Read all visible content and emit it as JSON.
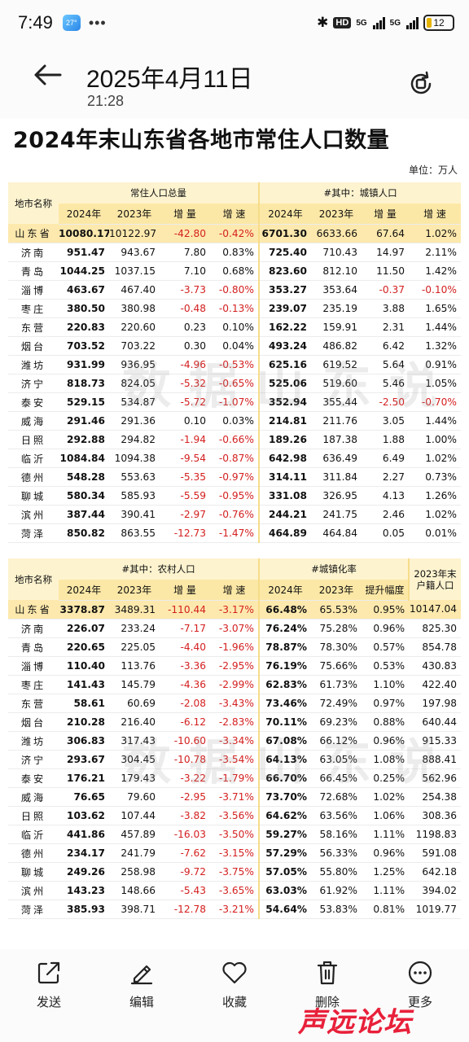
{
  "status_bar": {
    "time": "7:49",
    "app_badge": "27°",
    "more": "•••",
    "hd": "HD",
    "net1": "5G",
    "net2": "5G",
    "battery": "12"
  },
  "header": {
    "date": "2025年4月11日",
    "time": "21:28"
  },
  "document": {
    "title": "2024年末山东省各地市常住人口数量",
    "unit": "单位：万人",
    "watermark": "数据山东说",
    "table1": {
      "name_header": "地市名称",
      "group1": "常住人口总量",
      "group2": "#其中：城镇人口",
      "cols": [
        "2024年",
        "2023年",
        "增 量",
        "增 速",
        "2024年",
        "2023年",
        "增 量",
        "增 速"
      ],
      "rows": [
        [
          "山东省",
          "10080.17",
          "10122.97",
          "-42.80",
          "-0.42%",
          "6701.30",
          "6633.66",
          "67.64",
          "1.02%"
        ],
        [
          "济南",
          "951.47",
          "943.67",
          "7.80",
          "0.83%",
          "725.40",
          "710.43",
          "14.97",
          "2.11%"
        ],
        [
          "青岛",
          "1044.25",
          "1037.15",
          "7.10",
          "0.68%",
          "823.60",
          "812.10",
          "11.50",
          "1.42%"
        ],
        [
          "淄博",
          "463.67",
          "467.40",
          "-3.73",
          "-0.80%",
          "353.27",
          "353.64",
          "-0.37",
          "-0.10%"
        ],
        [
          "枣庄",
          "380.50",
          "380.98",
          "-0.48",
          "-0.13%",
          "239.07",
          "235.19",
          "3.88",
          "1.65%"
        ],
        [
          "东营",
          "220.83",
          "220.60",
          "0.23",
          "0.10%",
          "162.22",
          "159.91",
          "2.31",
          "1.44%"
        ],
        [
          "烟台",
          "703.52",
          "703.22",
          "0.30",
          "0.04%",
          "493.24",
          "486.82",
          "6.42",
          "1.32%"
        ],
        [
          "潍坊",
          "931.99",
          "936.95",
          "-4.96",
          "-0.53%",
          "625.16",
          "619.52",
          "5.64",
          "0.91%"
        ],
        [
          "济宁",
          "818.73",
          "824.05",
          "-5.32",
          "-0.65%",
          "525.06",
          "519.60",
          "5.46",
          "1.05%"
        ],
        [
          "泰安",
          "529.15",
          "534.87",
          "-5.72",
          "-1.07%",
          "352.94",
          "355.44",
          "-2.50",
          "-0.70%"
        ],
        [
          "威海",
          "291.46",
          "291.36",
          "0.10",
          "0.03%",
          "214.81",
          "211.76",
          "3.05",
          "1.44%"
        ],
        [
          "日照",
          "292.88",
          "294.82",
          "-1.94",
          "-0.66%",
          "189.26",
          "187.38",
          "1.88",
          "1.00%"
        ],
        [
          "临沂",
          "1084.84",
          "1094.38",
          "-9.54",
          "-0.87%",
          "642.98",
          "636.49",
          "6.49",
          "1.02%"
        ],
        [
          "德州",
          "548.28",
          "553.63",
          "-5.35",
          "-0.97%",
          "314.11",
          "311.84",
          "2.27",
          "0.73%"
        ],
        [
          "聊城",
          "580.34",
          "585.93",
          "-5.59",
          "-0.95%",
          "331.08",
          "326.95",
          "4.13",
          "1.26%"
        ],
        [
          "滨州",
          "387.44",
          "390.41",
          "-2.97",
          "-0.76%",
          "244.21",
          "241.75",
          "2.46",
          "1.02%"
        ],
        [
          "菏泽",
          "850.82",
          "863.55",
          "-12.73",
          "-1.47%",
          "464.89",
          "464.84",
          "0.05",
          "0.01%"
        ]
      ]
    },
    "table2": {
      "name_header": "地市名称",
      "group1": "#其中：农村人口",
      "group2": "#城镇化率",
      "group3": "2023年末户籍人口",
      "cols": [
        "2024年",
        "2023年",
        "增 量",
        "增 速",
        "2024年",
        "2023年",
        "提升幅度"
      ],
      "rows": [
        [
          "山东省",
          "3378.87",
          "3489.31",
          "-110.44",
          "-3.17%",
          "66.48%",
          "65.53%",
          "0.95%",
          "10147.04"
        ],
        [
          "济南",
          "226.07",
          "233.24",
          "-7.17",
          "-3.07%",
          "76.24%",
          "75.28%",
          "0.96%",
          "825.30"
        ],
        [
          "青岛",
          "220.65",
          "225.05",
          "-4.40",
          "-1.96%",
          "78.87%",
          "78.30%",
          "0.57%",
          "854.78"
        ],
        [
          "淄博",
          "110.40",
          "113.76",
          "-3.36",
          "-2.95%",
          "76.19%",
          "75.66%",
          "0.53%",
          "430.83"
        ],
        [
          "枣庄",
          "141.43",
          "145.79",
          "-4.36",
          "-2.99%",
          "62.83%",
          "61.73%",
          "1.10%",
          "422.40"
        ],
        [
          "东营",
          "58.61",
          "60.69",
          "-2.08",
          "-3.43%",
          "73.46%",
          "72.49%",
          "0.97%",
          "197.98"
        ],
        [
          "烟台",
          "210.28",
          "216.40",
          "-6.12",
          "-2.83%",
          "70.11%",
          "69.23%",
          "0.88%",
          "640.44"
        ],
        [
          "潍坊",
          "306.83",
          "317.43",
          "-10.60",
          "-3.34%",
          "67.08%",
          "66.12%",
          "0.96%",
          "915.33"
        ],
        [
          "济宁",
          "293.67",
          "304.45",
          "-10.78",
          "-3.54%",
          "64.13%",
          "63.05%",
          "1.08%",
          "888.41"
        ],
        [
          "泰安",
          "176.21",
          "179.43",
          "-3.22",
          "-1.79%",
          "66.70%",
          "66.45%",
          "0.25%",
          "562.96"
        ],
        [
          "威海",
          "76.65",
          "79.60",
          "-2.95",
          "-3.71%",
          "73.70%",
          "72.68%",
          "1.02%",
          "254.38"
        ],
        [
          "日照",
          "103.62",
          "107.44",
          "-3.82",
          "-3.56%",
          "64.62%",
          "63.56%",
          "1.06%",
          "308.36"
        ],
        [
          "临沂",
          "441.86",
          "457.89",
          "-16.03",
          "-3.50%",
          "59.27%",
          "58.16%",
          "1.11%",
          "1198.83"
        ],
        [
          "德州",
          "234.17",
          "241.79",
          "-7.62",
          "-3.15%",
          "57.29%",
          "56.33%",
          "0.96%",
          "591.08"
        ],
        [
          "聊城",
          "249.26",
          "258.98",
          "-9.72",
          "-3.75%",
          "57.05%",
          "55.80%",
          "1.25%",
          "642.18"
        ],
        [
          "滨州",
          "143.23",
          "148.66",
          "-5.43",
          "-3.65%",
          "63.03%",
          "61.92%",
          "1.11%",
          "394.02"
        ],
        [
          "菏泽",
          "385.93",
          "398.71",
          "-12.78",
          "-3.21%",
          "54.64%",
          "53.83%",
          "0.81%",
          "1019.77"
        ]
      ]
    }
  },
  "actions": [
    {
      "label": "发送",
      "icon": "share-icon"
    },
    {
      "label": "编辑",
      "icon": "edit-icon"
    },
    {
      "label": "收藏",
      "icon": "heart-icon"
    },
    {
      "label": "删除",
      "icon": "trash-icon"
    },
    {
      "label": "更多",
      "icon": "more-icon"
    }
  ],
  "brand": "声远论坛",
  "colors": {
    "header_bg": "#fdf3cf",
    "subheader_bg": "#fce8a6",
    "total_row_bg": "#fde9ad",
    "negative": "#d42020",
    "brand": "#e8203a"
  }
}
